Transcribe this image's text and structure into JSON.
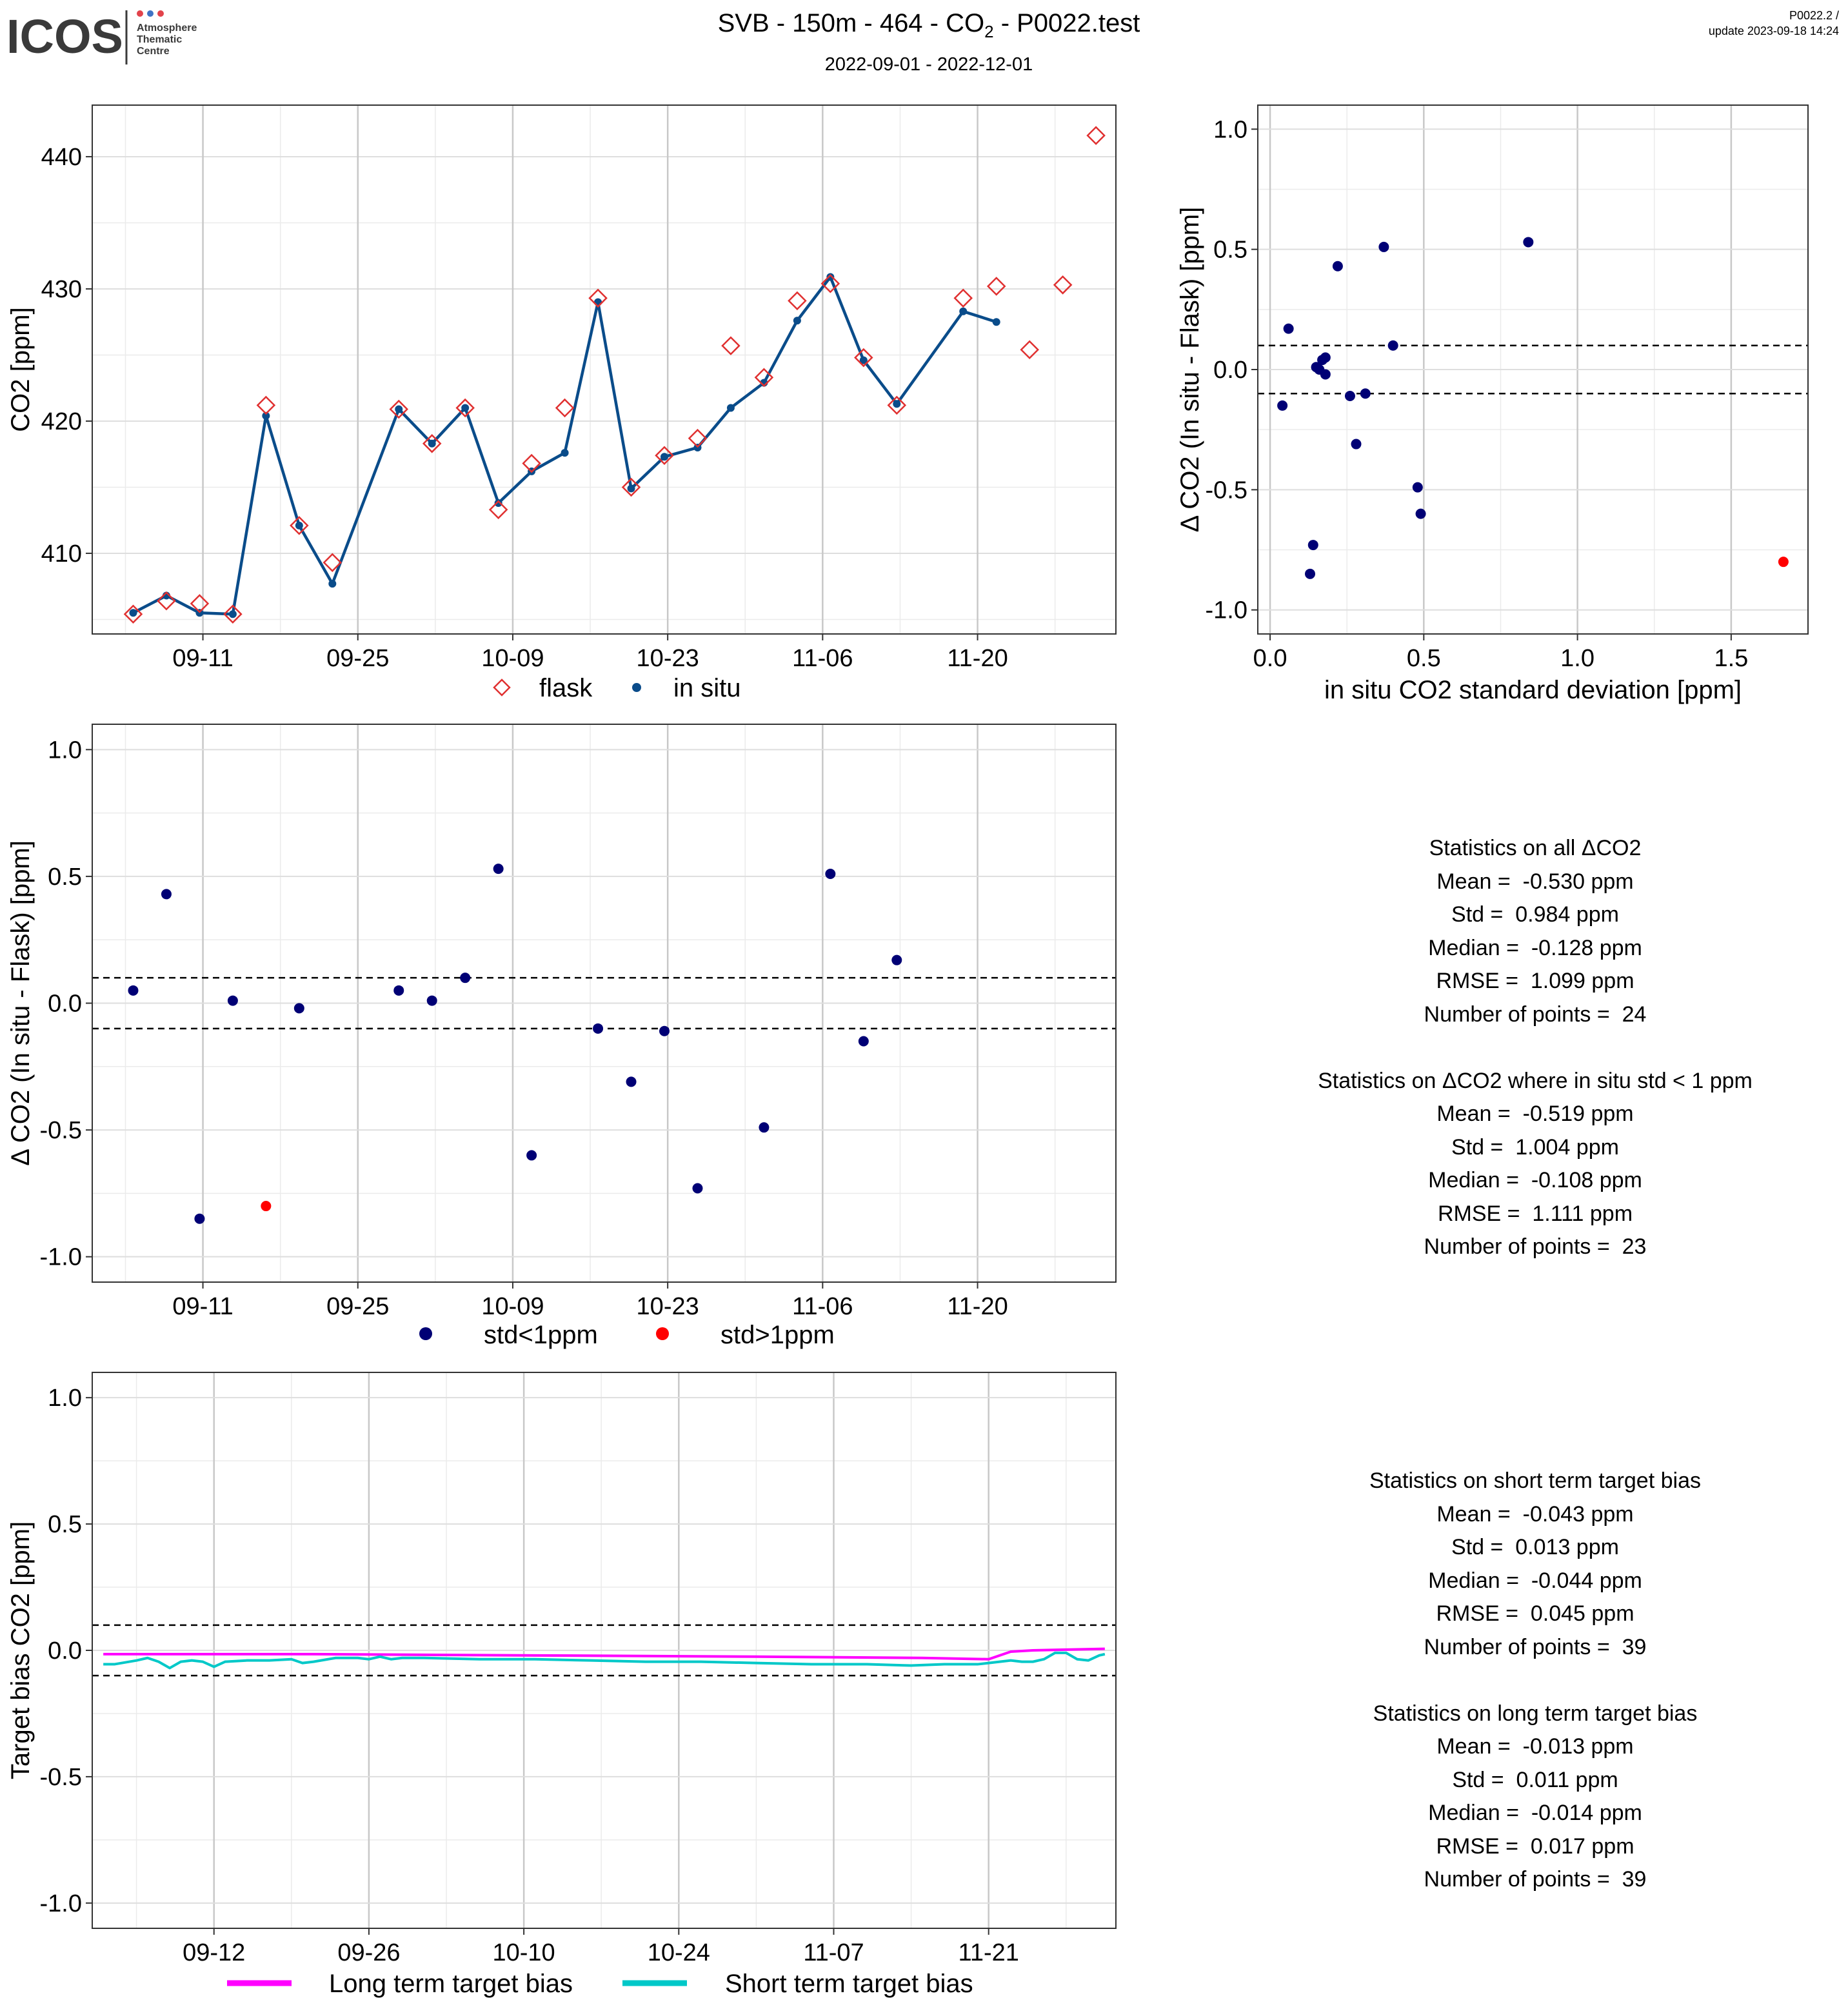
{
  "header": {
    "logo_text": "ICOS",
    "logo_sub": [
      "Atmosphere",
      "Thematic",
      "Centre"
    ],
    "title_prefix": "SVB - 150m - 464 - CO",
    "title_sub": "2",
    "title_suffix": " - P0022.test",
    "date_range": "2022-09-01 - 2022-12-01",
    "code": "P0022.2 /",
    "update": "update  2023-09-18 14:24"
  },
  "colors": {
    "insitu": "#0a4c8a",
    "flask": "#e03030",
    "navy": "#000075",
    "red": "#ff0000",
    "long_term": "#ff00ff",
    "short_term": "#00c8c8",
    "logo_dots": [
      "#e2434b",
      "#3f73c5",
      "#e2434b"
    ]
  },
  "chart_data": [
    {
      "id": "co2_timeseries",
      "type": "line",
      "ylabel": "CO2 [ppm]",
      "xticks": [
        "09-11",
        "09-25",
        "10-09",
        "10-23",
        "11-06",
        "11-20"
      ],
      "xtick_days": [
        10,
        24,
        38,
        52,
        66,
        80
      ],
      "yticks": [
        410,
        420,
        430,
        440
      ],
      "xlim": [
        0,
        92.5
      ],
      "ylim": [
        403.9,
        443.9
      ],
      "grid": true,
      "legend_position": "bottom",
      "series": [
        {
          "name": "in situ",
          "days": [
            3.7,
            6.7,
            9.7,
            12.7,
            15.7,
            18.7,
            21.7,
            27.7,
            30.7,
            33.7,
            36.7,
            39.7,
            42.7,
            45.7,
            48.7,
            51.7,
            54.7,
            57.7,
            60.7,
            63.7,
            66.7,
            69.7,
            72.7,
            78.7,
            81.7
          ],
          "values": [
            405.5,
            406.8,
            405.5,
            405.4,
            420.4,
            412.1,
            407.7,
            420.9,
            418.3,
            421.0,
            413.8,
            416.2,
            417.6,
            429.0,
            414.9,
            417.3,
            418.0,
            421.0,
            422.9,
            427.6,
            430.9,
            424.6,
            421.3,
            428.3,
            427.5
          ]
        },
        {
          "name": "flask",
          "days": [
            3.7,
            6.7,
            9.7,
            12.7,
            15.7,
            18.7,
            21.7,
            27.7,
            30.7,
            33.7,
            36.7,
            39.7,
            42.7,
            45.7,
            48.7,
            51.7,
            54.7,
            57.7,
            60.7,
            63.7,
            66.7,
            69.7,
            72.7,
            78.7,
            81.7,
            84.7,
            87.7,
            90.7
          ],
          "values": [
            405.4,
            406.4,
            406.2,
            405.4,
            421.2,
            412.1,
            409.3,
            420.9,
            418.3,
            421.0,
            413.3,
            416.8,
            421.0,
            429.3,
            415.0,
            417.4,
            418.7,
            425.7,
            423.3,
            429.1,
            430.4,
            424.8,
            421.2,
            429.3,
            430.2,
            425.4,
            430.3,
            441.6
          ]
        }
      ],
      "legend": [
        "flask",
        "in situ"
      ]
    },
    {
      "id": "delta_vs_std",
      "type": "scatter",
      "xlabel": "in situ CO2 standard deviation [ppm]",
      "ylabel": "Δ CO2 (In situ - Flask) [ppm]",
      "xticks": [
        "0.0",
        "0.5",
        "1.0",
        "1.5"
      ],
      "yticks": [
        "-1.0",
        "-0.5",
        "0.0",
        "0.5",
        "1.0"
      ],
      "xlim": [
        -0.04,
        1.75
      ],
      "ylim": [
        -1.1,
        1.1
      ],
      "grid": true,
      "threshold_lines": [
        -0.1,
        0.1
      ],
      "points_ok": {
        "x": [
          0.04,
          0.06,
          0.13,
          0.14,
          0.15,
          0.16,
          0.17,
          0.18,
          0.18,
          0.22,
          0.26,
          0.28,
          0.31,
          0.37,
          0.4,
          0.48,
          0.49,
          0.84
        ],
        "y": [
          -0.15,
          0.17,
          -0.85,
          -0.73,
          0.01,
          0.0,
          0.04,
          0.05,
          -0.02,
          0.43,
          -0.11,
          -0.31,
          -0.1,
          0.51,
          0.1,
          -0.49,
          -0.6,
          0.53
        ]
      },
      "points_high": {
        "x": [
          1.67
        ],
        "y": [
          -0.8
        ]
      }
    },
    {
      "id": "delta_timeseries",
      "type": "scatter",
      "ylabel": "Δ CO2 (In situ - Flask) [ppm]",
      "xticks": [
        "09-11",
        "09-25",
        "10-09",
        "10-23",
        "11-06",
        "11-20"
      ],
      "xtick_days": [
        10,
        24,
        38,
        52,
        66,
        80
      ],
      "yticks": [
        "-1.0",
        "-0.5",
        "0.0",
        "0.5",
        "1.0"
      ],
      "xlim": [
        0,
        92.5
      ],
      "ylim": [
        -1.1,
        1.1
      ],
      "grid": true,
      "threshold_lines": [
        -0.1,
        0.1
      ],
      "legend_position": "bottom",
      "legend": [
        "std<1ppm",
        "std>1ppm"
      ],
      "points_ok": {
        "days": [
          3.7,
          6.7,
          9.7,
          12.7,
          18.7,
          27.7,
          30.7,
          33.7,
          36.7,
          39.7,
          45.7,
          48.7,
          51.7,
          54.7,
          60.7,
          66.7,
          69.7,
          72.7
        ],
        "values": [
          0.05,
          0.43,
          -0.85,
          0.01,
          -0.02,
          0.05,
          0.01,
          0.1,
          0.53,
          -0.6,
          -0.1,
          -0.31,
          -0.11,
          -0.73,
          -0.49,
          0.51,
          -0.15,
          0.17
        ]
      },
      "points_high": {
        "days": [
          15.7
        ],
        "values": [
          -0.8
        ]
      }
    },
    {
      "id": "target_bias",
      "type": "line",
      "ylabel": "Target bias CO2 [ppm]",
      "xticks": [
        "09-12",
        "09-26",
        "10-10",
        "10-24",
        "11-07",
        "11-21"
      ],
      "xtick_days": [
        11,
        25,
        39,
        53,
        67,
        81
      ],
      "yticks": [
        "-1.0",
        "-0.5",
        "0.0",
        "0.5",
        "1.0"
      ],
      "xlim": [
        0,
        92.5
      ],
      "ylim": [
        -1.1,
        1.1
      ],
      "grid": true,
      "threshold_lines": [
        -0.1,
        0.1
      ],
      "legend_position": "bottom",
      "legend": [
        "Long term target bias",
        "Short term target bias"
      ],
      "series": [
        {
          "name": "Long term target bias",
          "days": [
            1,
            20,
            40,
            60,
            75,
            81,
            83,
            85,
            88,
            91.5
          ],
          "values": [
            -0.015,
            -0.015,
            -0.02,
            -0.025,
            -0.03,
            -0.035,
            -0.005,
            0.0,
            0.003,
            0.006
          ]
        },
        {
          "name": "Short term target bias",
          "days": [
            1,
            2,
            4,
            5,
            6,
            7,
            8,
            9,
            10,
            11,
            12,
            14,
            16,
            18,
            19,
            20,
            22,
            24,
            25,
            26,
            27,
            28,
            30,
            35,
            40,
            45,
            50,
            55,
            60,
            65,
            70,
            74,
            77,
            78,
            79,
            80,
            81,
            82,
            83,
            84,
            85,
            86,
            87,
            88,
            89,
            90,
            91,
            91.5
          ],
          "values": [
            -0.055,
            -0.055,
            -0.04,
            -0.03,
            -0.045,
            -0.07,
            -0.045,
            -0.04,
            -0.045,
            -0.065,
            -0.045,
            -0.04,
            -0.04,
            -0.035,
            -0.05,
            -0.045,
            -0.03,
            -0.03,
            -0.035,
            -0.025,
            -0.035,
            -0.03,
            -0.03,
            -0.035,
            -0.035,
            -0.04,
            -0.045,
            -0.045,
            -0.05,
            -0.055,
            -0.055,
            -0.06,
            -0.055,
            -0.055,
            -0.055,
            -0.055,
            -0.05,
            -0.045,
            -0.04,
            -0.045,
            -0.045,
            -0.035,
            -0.01,
            -0.01,
            -0.035,
            -0.04,
            -0.02,
            -0.015
          ]
        }
      ]
    }
  ],
  "stats_delta": [
    {
      "head": "Statistics on all ΔCO2"
    },
    {
      "label": "Mean = ",
      "value": " -0.530 ppm"
    },
    {
      "label": "Std = ",
      "value": " 0.984 ppm"
    },
    {
      "label": "Median = ",
      "value": " -0.128 ppm"
    },
    {
      "label": "RMSE = ",
      "value": " 1.099 ppm"
    },
    {
      "label": "Number of points = ",
      "value": " 24"
    },
    {
      "gap": true
    },
    {
      "head": "Statistics on ΔCO2 where in situ std < 1 ppm"
    },
    {
      "label": "Mean = ",
      "value": " -0.519 ppm"
    },
    {
      "label": "Std = ",
      "value": " 1.004 ppm"
    },
    {
      "label": "Median = ",
      "value": " -0.108 ppm"
    },
    {
      "label": "RMSE = ",
      "value": " 1.111 ppm"
    },
    {
      "label": "Number of points = ",
      "value": " 23"
    }
  ],
  "stats_bias": [
    {
      "head": "Statistics on short term target bias"
    },
    {
      "label": "Mean = ",
      "value": " -0.043 ppm"
    },
    {
      "label": "Std = ",
      "value": " 0.013 ppm"
    },
    {
      "label": "Median = ",
      "value": " -0.044 ppm"
    },
    {
      "label": "RMSE = ",
      "value": " 0.045 ppm"
    },
    {
      "label": "Number of points = ",
      "value": " 39"
    },
    {
      "gap": true
    },
    {
      "head": "Statistics on long term target bias"
    },
    {
      "label": "Mean = ",
      "value": " -0.013 ppm"
    },
    {
      "label": "Std = ",
      "value": " 0.011 ppm"
    },
    {
      "label": "Median = ",
      "value": " -0.014 ppm"
    },
    {
      "label": "RMSE = ",
      "value": " 0.017 ppm"
    },
    {
      "label": "Number of points = ",
      "value": " 39"
    }
  ]
}
